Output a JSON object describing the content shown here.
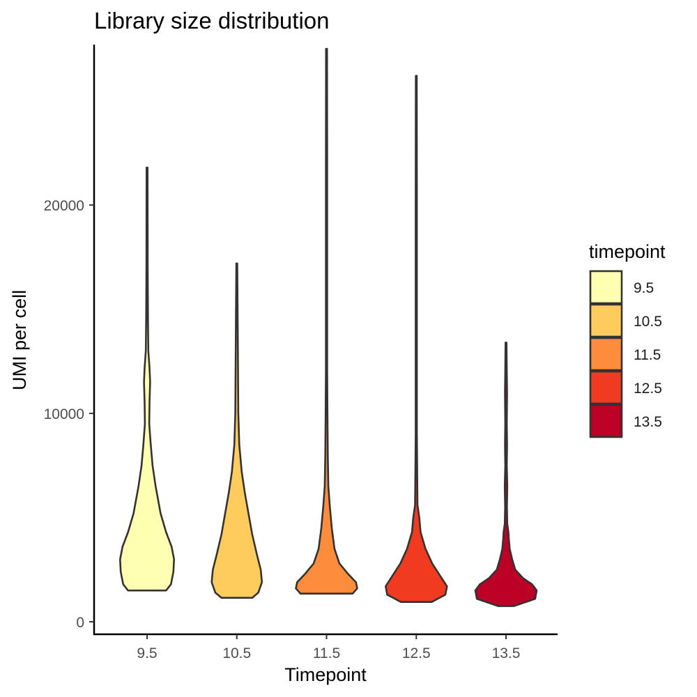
{
  "chart_data": {
    "type": "violin",
    "title": "Library size distribution",
    "xlabel": "Timepoint",
    "ylabel": "UMI per cell",
    "categories": [
      "9.5",
      "10.5",
      "11.5",
      "12.5",
      "13.5"
    ],
    "ylim": [
      -600,
      27700
    ],
    "yticks": [
      0,
      10000,
      20000
    ],
    "ytick_labels": [
      "0",
      "10000",
      "20000"
    ],
    "grid": false,
    "legend": {
      "title": "timepoint",
      "placement": "right",
      "entries": [
        "9.5",
        "10.5",
        "11.5",
        "12.5",
        "13.5"
      ]
    },
    "colors": [
      "#ffffb2",
      "#fecc5c",
      "#fd8d3c",
      "#f03b20",
      "#bd0026"
    ],
    "outline_color": "#333333",
    "series": [
      {
        "name": "9.5",
        "min": 1500,
        "max": 21800,
        "profile": [
          [
            1500,
            0.62
          ],
          [
            1800,
            0.78
          ],
          [
            2400,
            0.86
          ],
          [
            3000,
            0.88
          ],
          [
            3600,
            0.8
          ],
          [
            4300,
            0.62
          ],
          [
            5200,
            0.44
          ],
          [
            6500,
            0.28
          ],
          [
            7500,
            0.18
          ],
          [
            8500,
            0.12
          ],
          [
            9500,
            0.07
          ],
          [
            10500,
            0.08
          ],
          [
            11500,
            0.1
          ],
          [
            12200,
            0.08
          ],
          [
            13000,
            0.04
          ],
          [
            14500,
            0.03
          ],
          [
            17000,
            0.02
          ],
          [
            21800,
            0.015
          ]
        ]
      },
      {
        "name": "10.5",
        "min": 1150,
        "max": 17200,
        "profile": [
          [
            1150,
            0.5
          ],
          [
            1400,
            0.7
          ],
          [
            1900,
            0.82
          ],
          [
            2500,
            0.78
          ],
          [
            3200,
            0.66
          ],
          [
            4200,
            0.5
          ],
          [
            5200,
            0.38
          ],
          [
            6200,
            0.26
          ],
          [
            7200,
            0.16
          ],
          [
            8500,
            0.08
          ],
          [
            10000,
            0.05
          ],
          [
            12000,
            0.04
          ],
          [
            14000,
            0.03
          ],
          [
            17200,
            0.015
          ]
        ]
      },
      {
        "name": "11.5",
        "min": 1350,
        "max": 27500,
        "profile": [
          [
            1350,
            0.85
          ],
          [
            1600,
            1.0
          ],
          [
            1900,
            0.96
          ],
          [
            2300,
            0.7
          ],
          [
            2800,
            0.42
          ],
          [
            3500,
            0.26
          ],
          [
            4500,
            0.17
          ],
          [
            5500,
            0.11
          ],
          [
            6500,
            0.06
          ],
          [
            8000,
            0.04
          ],
          [
            10000,
            0.03
          ],
          [
            12000,
            0.02
          ],
          [
            15000,
            0.02
          ],
          [
            18000,
            0.02
          ],
          [
            22000,
            0.02
          ],
          [
            27500,
            0.015
          ]
        ]
      },
      {
        "name": "12.5",
        "min": 950,
        "max": 26200,
        "profile": [
          [
            950,
            0.5
          ],
          [
            1300,
            0.95
          ],
          [
            1700,
            1.0
          ],
          [
            2200,
            0.78
          ],
          [
            2800,
            0.52
          ],
          [
            3500,
            0.3
          ],
          [
            4300,
            0.14
          ],
          [
            5000,
            0.1
          ],
          [
            5600,
            0.04
          ],
          [
            7000,
            0.03
          ],
          [
            9000,
            0.02
          ],
          [
            12000,
            0.02
          ],
          [
            16000,
            0.02
          ],
          [
            20000,
            0.02
          ],
          [
            26200,
            0.015
          ]
        ]
      },
      {
        "name": "13.5",
        "min": 750,
        "max": 13400,
        "profile": [
          [
            750,
            0.25
          ],
          [
            1100,
            0.95
          ],
          [
            1500,
            1.0
          ],
          [
            1800,
            0.85
          ],
          [
            2100,
            0.55
          ],
          [
            2500,
            0.3
          ],
          [
            3000,
            0.2
          ],
          [
            3500,
            0.12
          ],
          [
            4000,
            0.09
          ],
          [
            4300,
            0.08
          ],
          [
            4700,
            0.04
          ],
          [
            5500,
            0.03
          ],
          [
            6500,
            0.04
          ],
          [
            7500,
            0.025
          ],
          [
            8500,
            0.035
          ],
          [
            9500,
            0.025
          ],
          [
            11000,
            0.035
          ],
          [
            12000,
            0.025
          ],
          [
            13400,
            0.015
          ]
        ]
      }
    ]
  }
}
